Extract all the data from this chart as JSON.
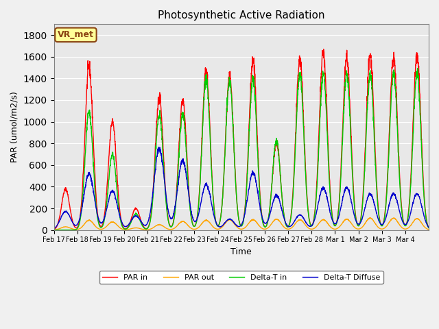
{
  "title": "Photosynthetic Active Radiation",
  "ylabel": "PAR (umol/m2/s)",
  "xlabel": "Time",
  "legend_label": "VR_met",
  "ylim": [
    0,
    1900
  ],
  "yticks": [
    0,
    200,
    400,
    600,
    800,
    1000,
    1200,
    1400,
    1600,
    1800
  ],
  "xtick_labels": [
    "Feb 17",
    "Feb 18",
    "Feb 19",
    "Feb 20",
    "Feb 21",
    "Feb 22",
    "Feb 23",
    "Feb 24",
    "Feb 25",
    "Feb 26",
    "Feb 27",
    "Feb 28",
    "Mar 1",
    "Mar 2",
    "Mar 3",
    "Mar 4"
  ],
  "line_colors": {
    "PAR_in": "#FF0000",
    "PAR_out": "#FFA500",
    "Delta_T_in": "#00CC00",
    "Delta_T_diffuse": "#0000CC"
  },
  "fig_bg_color": "#F0F0F0",
  "plot_bg_color": "#E8E8E8",
  "legend_entries": [
    "PAR in",
    "PAR out",
    "Delta-T in",
    "Delta-T Diffuse"
  ],
  "days": 16,
  "day_peaks_PAR_in": [
    380,
    1510,
    1000,
    200,
    1230,
    1200,
    1470,
    1420,
    1560,
    810,
    1570,
    1630,
    1600,
    1610,
    1600,
    1610
  ],
  "day_peaks_PAR_out": [
    30,
    90,
    75,
    20,
    50,
    80,
    90,
    95,
    95,
    100,
    95,
    95,
    100,
    110,
    110,
    105
  ],
  "day_peaks_Delta_T_in": [
    0,
    1100,
    700,
    150,
    1070,
    1080,
    1390,
    1380,
    1400,
    820,
    1440,
    1440,
    1440,
    1440,
    1450,
    1450
  ],
  "day_peaks_Delta_T_diffuse": [
    170,
    520,
    360,
    130,
    750,
    640,
    420,
    100,
    530,
    320,
    140,
    390,
    390,
    335,
    335,
    335
  ]
}
